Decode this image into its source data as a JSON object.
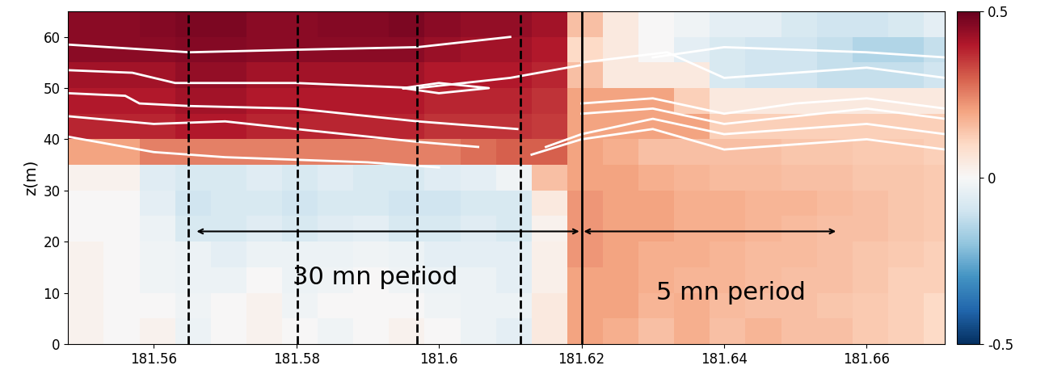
{
  "chart_data": {
    "type": "heatmap",
    "ylabel": "z(m)",
    "xlim": [
      181.548,
      181.671
    ],
    "xticks": [
      181.56,
      181.58,
      181.6,
      181.62,
      181.64,
      181.66
    ],
    "ylim": [
      0,
      65
    ],
    "yticks": [
      0,
      10,
      20,
      30,
      40,
      50,
      60
    ],
    "colorbar_range": [
      -0.5,
      0.5
    ],
    "colorbar_ticks": [
      -0.5,
      0,
      0.5
    ],
    "x_edges": [
      181.548,
      181.553,
      181.558,
      181.563,
      181.568,
      181.573,
      181.578,
      181.583,
      181.588,
      181.593,
      181.598,
      181.603,
      181.608,
      181.613,
      181.618,
      181.623,
      181.628,
      181.633,
      181.638,
      181.643,
      181.648,
      181.653,
      181.658,
      181.663,
      181.668,
      181.673
    ],
    "z_edges": [
      0,
      5,
      10,
      15,
      20,
      25,
      30,
      35,
      40,
      45,
      50,
      55,
      60,
      65
    ],
    "cells": [
      [
        0.02,
        0.0,
        0.02,
        -0.03,
        0.0,
        0.02,
        0.0,
        -0.02,
        0.0,
        0.02,
        0.0,
        -0.03,
        -0.05,
        0.05,
        0.2,
        0.18,
        0.15,
        0.18,
        0.15,
        0.17,
        0.15,
        0.15,
        0.13,
        0.12,
        0.1
      ],
      [
        0.02,
        0.0,
        0.0,
        -0.02,
        0.0,
        0.02,
        -0.02,
        0.0,
        0.0,
        0.0,
        -0.02,
        -0.03,
        -0.03,
        0.05,
        0.2,
        0.2,
        0.17,
        0.18,
        0.16,
        0.15,
        0.15,
        0.14,
        0.13,
        0.12,
        0.1
      ],
      [
        0.02,
        0.0,
        -0.02,
        -0.03,
        -0.03,
        0.0,
        -0.03,
        -0.02,
        0.0,
        -0.02,
        -0.03,
        -0.03,
        -0.05,
        0.03,
        0.2,
        0.2,
        0.18,
        0.17,
        0.17,
        0.16,
        0.15,
        0.15,
        0.14,
        0.12,
        0.12
      ],
      [
        0.02,
        0.0,
        -0.02,
        -0.03,
        -0.05,
        -0.03,
        -0.03,
        -0.03,
        -0.02,
        -0.03,
        -0.05,
        -0.05,
        -0.05,
        0.03,
        0.22,
        0.2,
        0.18,
        0.18,
        0.17,
        0.16,
        0.16,
        0.15,
        0.14,
        0.13,
        0.12
      ],
      [
        0.0,
        0.0,
        -0.03,
        -0.08,
        -0.08,
        -0.06,
        -0.08,
        -0.06,
        -0.05,
        -0.08,
        -0.08,
        -0.06,
        -0.08,
        0.02,
        0.22,
        0.2,
        0.2,
        0.18,
        0.18,
        0.17,
        0.16,
        0.15,
        0.15,
        0.14,
        0.13
      ],
      [
        0.0,
        0.0,
        -0.05,
        -0.1,
        -0.08,
        -0.08,
        -0.1,
        -0.08,
        -0.08,
        -0.1,
        -0.1,
        -0.08,
        -0.08,
        0.05,
        0.22,
        0.2,
        0.2,
        0.18,
        0.18,
        0.17,
        0.17,
        0.16,
        0.15,
        0.14,
        0.13
      ],
      [
        0.02,
        0.02,
        -0.06,
        -0.08,
        -0.08,
        -0.06,
        -0.08,
        -0.06,
        -0.08,
        -0.08,
        -0.06,
        -0.05,
        -0.02,
        0.15,
        0.2,
        0.2,
        0.18,
        0.17,
        0.16,
        0.16,
        0.15,
        0.15,
        0.14,
        0.14,
        0.13
      ],
      [
        0.2,
        0.2,
        0.25,
        0.25,
        0.25,
        0.25,
        0.25,
        0.25,
        0.25,
        0.25,
        0.25,
        0.28,
        0.3,
        0.3,
        0.2,
        0.18,
        0.15,
        0.15,
        0.15,
        0.15,
        0.14,
        0.14,
        0.13,
        0.13,
        0.12
      ],
      [
        0.38,
        0.38,
        0.38,
        0.4,
        0.4,
        0.38,
        0.38,
        0.38,
        0.38,
        0.38,
        0.36,
        0.36,
        0.36,
        0.35,
        0.2,
        0.2,
        0.2,
        0.2,
        0.12,
        0.12,
        0.12,
        0.12,
        0.12,
        0.12,
        0.12
      ],
      [
        0.4,
        0.4,
        0.4,
        0.42,
        0.42,
        0.4,
        0.4,
        0.4,
        0.4,
        0.4,
        0.38,
        0.38,
        0.38,
        0.36,
        0.2,
        0.2,
        0.2,
        0.12,
        0.05,
        0.05,
        0.05,
        0.05,
        0.05,
        0.05,
        0.05
      ],
      [
        0.42,
        0.42,
        0.42,
        0.44,
        0.44,
        0.42,
        0.42,
        0.42,
        0.42,
        0.42,
        0.4,
        0.4,
        0.4,
        0.38,
        0.15,
        0.05,
        0.05,
        0.05,
        -0.08,
        -0.1,
        -0.1,
        -0.12,
        -0.12,
        -0.12,
        -0.1
      ],
      [
        0.45,
        0.45,
        0.45,
        0.46,
        0.46,
        0.45,
        0.45,
        0.45,
        0.45,
        0.45,
        0.43,
        0.42,
        0.42,
        0.4,
        0.1,
        0.05,
        0.0,
        -0.05,
        -0.08,
        -0.1,
        -0.1,
        -0.12,
        -0.15,
        -0.15,
        -0.12
      ],
      [
        0.45,
        0.45,
        0.46,
        0.47,
        0.47,
        0.45,
        0.45,
        0.46,
        0.46,
        0.47,
        0.45,
        0.44,
        0.44,
        0.42,
        0.15,
        0.05,
        0.0,
        -0.02,
        -0.05,
        -0.05,
        -0.08,
        -0.1,
        -0.1,
        -0.08,
        -0.05
      ]
    ],
    "contours": [
      {
        "x": [
          181.548,
          181.565,
          181.58,
          181.597,
          181.61
        ],
        "z": [
          58.5,
          57,
          57.5,
          58,
          60
        ]
      },
      {
        "x": [
          181.548,
          181.557,
          181.563,
          181.58,
          181.597,
          181.61,
          181.62
        ],
        "z": [
          53.5,
          53,
          51,
          51,
          50,
          52,
          54.5
        ]
      },
      {
        "x": [
          181.548,
          181.556,
          181.558,
          181.565,
          181.58,
          181.597,
          181.611
        ],
        "z": [
          49,
          48.5,
          47,
          46.5,
          46,
          43.5,
          42
        ]
      },
      {
        "x": [
          181.548,
          181.56,
          181.57,
          181.58,
          181.597,
          181.6055
        ],
        "z": [
          44.5,
          43,
          43.5,
          42,
          39.5,
          38.5
        ]
      },
      {
        "x": [
          181.548,
          181.56,
          181.57,
          181.58,
          181.59,
          181.6
        ],
        "z": [
          40.5,
          37.5,
          36.5,
          36,
          35.5,
          34.5
        ]
      },
      {
        "x": [
          181.595,
          181.6,
          181.607,
          181.6,
          181.595
        ],
        "z": [
          50,
          51,
          50,
          49,
          50
        ]
      },
      {
        "x": [
          181.613,
          181.62,
          181.63,
          181.64,
          181.65,
          181.66,
          181.671
        ],
        "z": [
          37,
          40,
          42,
          38,
          39,
          40,
          38
        ]
      },
      {
        "x": [
          181.615,
          181.62,
          181.63,
          181.64,
          181.65,
          181.66,
          181.671
        ],
        "z": [
          38.5,
          41,
          44,
          41,
          42,
          43,
          41
        ]
      },
      {
        "x": [
          181.62,
          181.63,
          181.64,
          181.65,
          181.66,
          181.671
        ],
        "z": [
          45,
          46,
          43,
          44.5,
          46,
          44
        ]
      },
      {
        "x": [
          181.62,
          181.63,
          181.64,
          181.65,
          181.66,
          181.671
        ],
        "z": [
          47,
          48,
          45,
          47,
          48,
          46
        ]
      },
      {
        "x": [
          181.62,
          181.632,
          181.64,
          181.65,
          181.66,
          181.671
        ],
        "z": [
          55,
          57,
          52,
          53,
          54,
          52
        ]
      },
      {
        "x": [
          181.63,
          181.64,
          181.66,
          181.671
        ],
        "z": [
          56,
          58,
          57,
          56
        ]
      }
    ],
    "dashed_lines": [
      181.5649,
      181.5801,
      181.5969,
      181.6114
    ],
    "solid_line": 181.62,
    "annotations": [
      {
        "text": "30 mn period",
        "x": 181.591,
        "y": 13,
        "x_start": 181.5657,
        "x_end": 181.62,
        "arrow_y": 22
      },
      {
        "text": "5 mn period",
        "x": 181.641,
        "y": 10,
        "x_start": 181.62,
        "x_end": 181.656,
        "arrow_y": 22
      }
    ]
  }
}
